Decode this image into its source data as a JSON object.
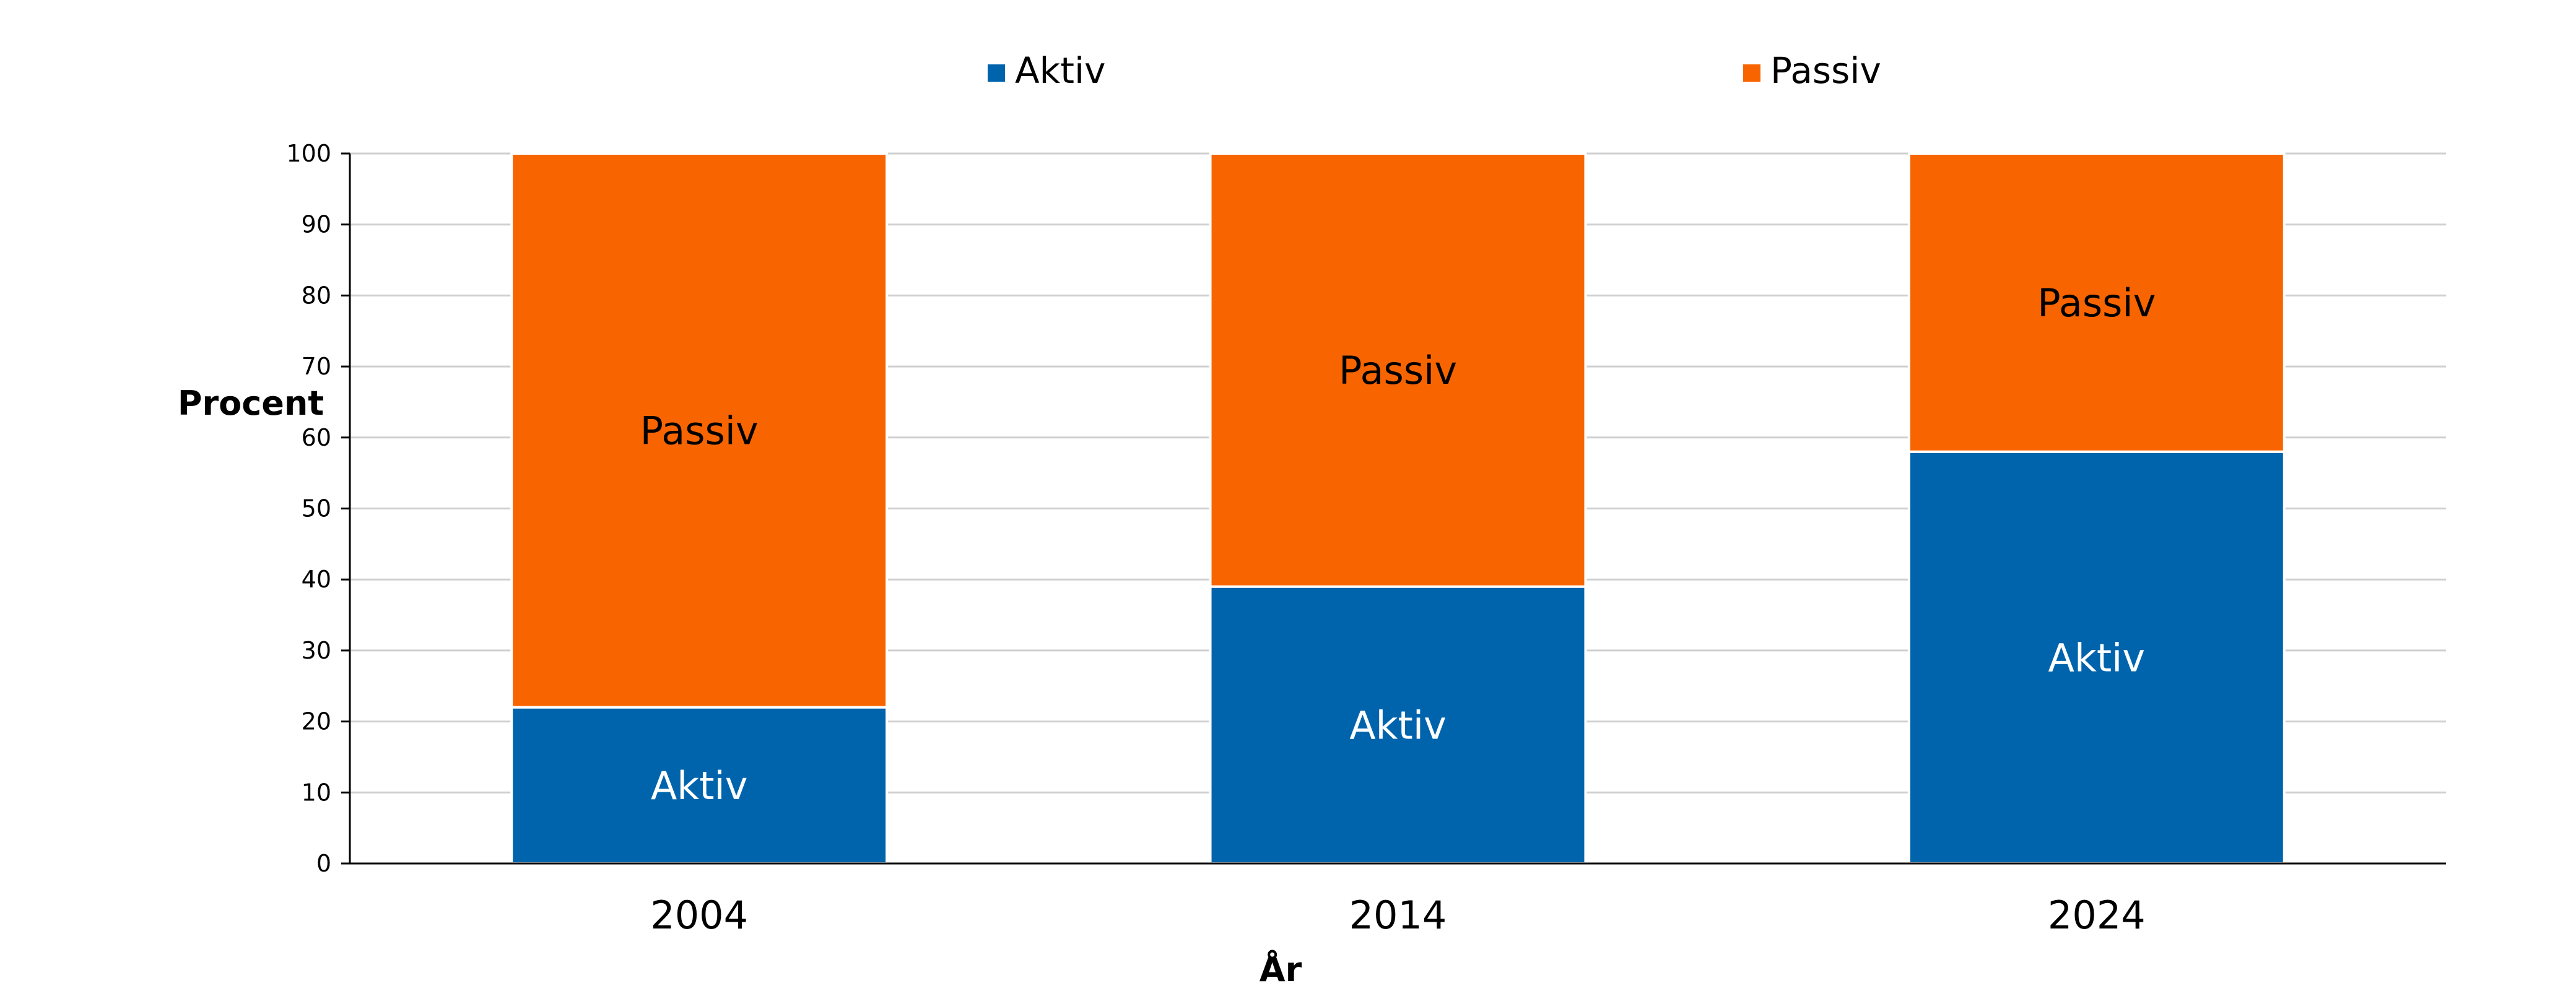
{
  "chart_data": {
    "type": "bar",
    "stacked": true,
    "categories": [
      "2004",
      "2014",
      "2024"
    ],
    "series": [
      {
        "name": "Aktiv",
        "values": [
          22,
          39,
          58
        ],
        "color": "#0064AD",
        "label_color": "#FFFFFF"
      },
      {
        "name": "Passiv",
        "values": [
          78,
          61,
          42
        ],
        "color": "#F86500",
        "label_color": "#000000"
      }
    ],
    "xlabel": "År",
    "ylabel": "Procent",
    "ylim": [
      0,
      100
    ],
    "yticks": [
      "0",
      "10",
      "20",
      "30",
      "40",
      "50",
      "60",
      "70",
      "80",
      "90",
      "100"
    ],
    "grid": true,
    "legend": "top"
  }
}
